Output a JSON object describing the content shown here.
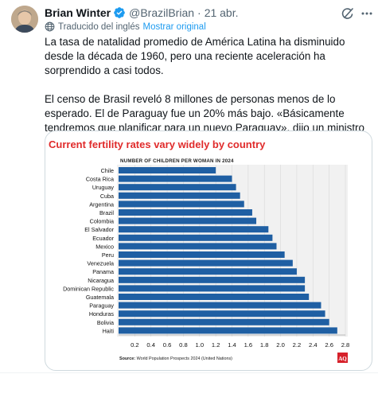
{
  "post": {
    "author_name": "Brian Winter",
    "handle": "@BrazilBrian",
    "separator": "·",
    "date": "21 abr.",
    "translated_label": "Traducido del inglés",
    "show_original": "Mostrar original",
    "paragraphs": [
      "La tasa de natalidad promedio de América Latina ha disminuido desde la década de 1960, pero una reciente aceleración ha sorprendido a casi todos.",
      "El censo de Brasil reveló 8 millones de personas menos de lo esperado. El de Paraguay fue un 20% más bajo. «Básicamente tendremos que planificar para un nuevo Paraguay», dijo un ministro allí."
    ],
    "icons": {
      "verified": "verified-badge-icon",
      "grok": "grok-icon",
      "more": "more-options-icon",
      "translate": "globe-icon"
    }
  },
  "colors": {
    "bar": "#1f5fa3",
    "title": "#e02b2b",
    "link": "#1d9bf0",
    "plot_bg": "#f1f1f1",
    "logo": "#d6202a"
  },
  "chart_data": {
    "type": "bar",
    "orientation": "horizontal",
    "title": "Current fertility rates vary widely by country",
    "subtitle": "NUMBER OF CHILDREN PER WOMAN IN 2024",
    "categories": [
      "Chile",
      "Costa Rica",
      "Uruguay",
      "Cuba",
      "Argentina",
      "Brazil",
      "Colombia",
      "El Salvador",
      "Ecuador",
      "Mexico",
      "Peru",
      "Venezuela",
      "Panama",
      "Nicaragua",
      "Dominican Republic",
      "Guatemala",
      "Paraguay",
      "Honduras",
      "Bolivia",
      "Haiti"
    ],
    "values": [
      1.2,
      1.4,
      1.45,
      1.5,
      1.55,
      1.65,
      1.7,
      1.85,
      1.9,
      1.95,
      2.05,
      2.15,
      2.2,
      2.3,
      2.3,
      2.35,
      2.5,
      2.55,
      2.6,
      2.7
    ],
    "xlim": [
      0,
      2.8
    ],
    "ticks": [
      "0.2",
      "0.4",
      "0.6",
      "0.8",
      "1.0",
      "1.2",
      "1.4",
      "1.6",
      "1.8",
      "2.0",
      "2.2",
      "2.4",
      "2.6",
      "2.8"
    ],
    "source_label": "Source:",
    "source_text": "World Population Prospects 2024 (United Nations)",
    "logo_text": "AQ"
  }
}
